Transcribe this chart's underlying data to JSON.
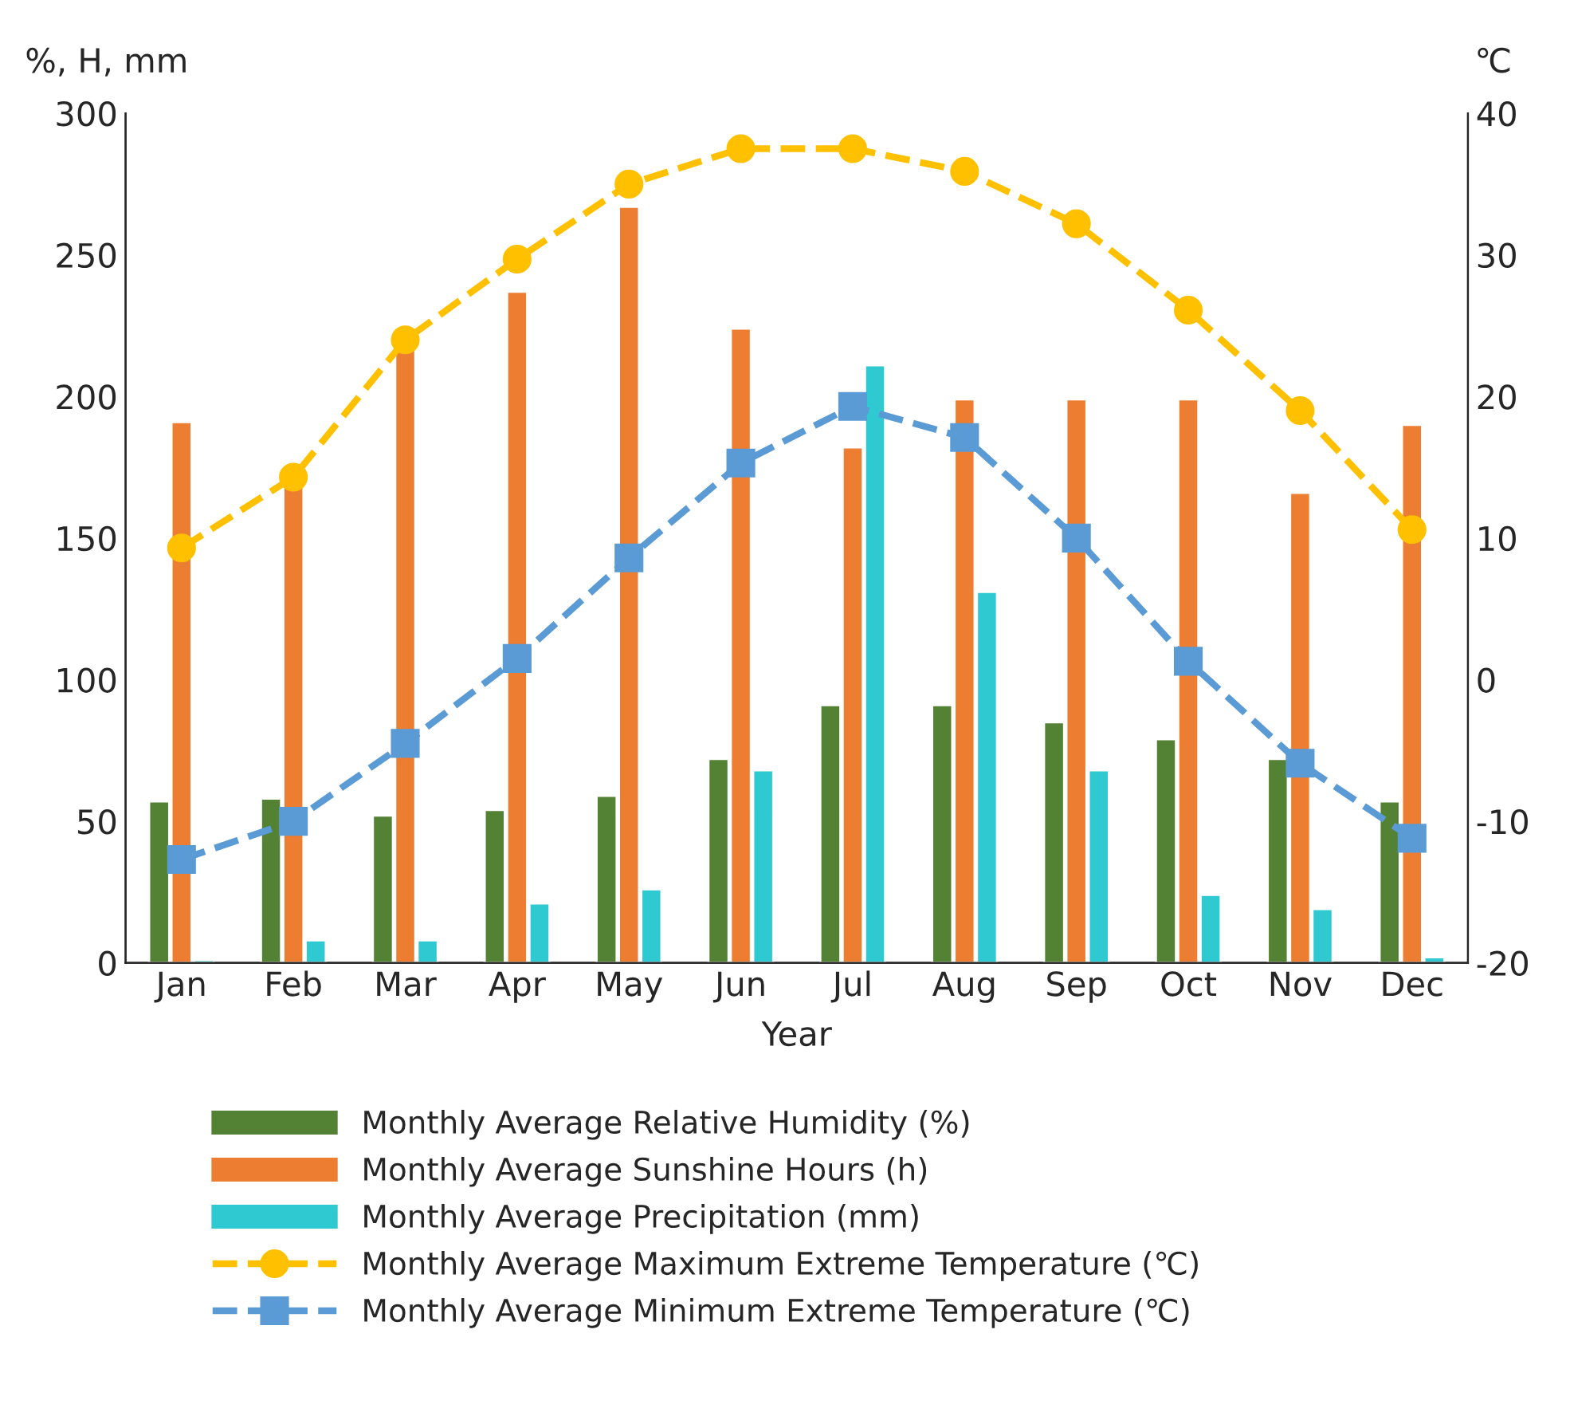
{
  "chart_data": {
    "type": "bar",
    "xlabel": "Year",
    "ylabel": "%, H, mm",
    "y2label": "℃",
    "categories": [
      "Jan",
      "Feb",
      "Mar",
      "Apr",
      "May",
      "Jun",
      "Jul",
      "Aug",
      "Sep",
      "Oct",
      "Nov",
      "Dec"
    ],
    "series": [
      {
        "name": "Monthly Average Relative Humidity (%)",
        "color": "#548235",
        "values": [
          57,
          58,
          52,
          54,
          59,
          72,
          91,
          91,
          85,
          79,
          72,
          57
        ]
      },
      {
        "name": "Monthly Average Sunshine Hours (h)",
        "color": "#ed7d31",
        "values": [
          191,
          170,
          217,
          237,
          267,
          224,
          182,
          199,
          199,
          199,
          166,
          190
        ]
      },
      {
        "name": "Monthly Average Precipitation (mm)",
        "color": "#2ec9d1",
        "values": [
          1,
          8,
          8,
          21,
          26,
          68,
          211,
          131,
          68,
          24,
          19,
          2
        ]
      },
      {
        "name": "Monthly Average Maximum Extreme Temperature (℃)",
        "type": "line",
        "axis": "y2",
        "color": "#ffc000",
        "marker": "circle",
        "line_style": "dashed",
        "values": [
          9.3,
          14.3,
          24,
          29.7,
          35,
          37.5,
          37.5,
          35.9,
          32.2,
          26.1,
          19,
          10.6
        ]
      },
      {
        "name": "Monthly Average Minimum Extreme Temperature (℃)",
        "type": "line",
        "axis": "y2",
        "color": "#5b9bd5",
        "marker": "square",
        "line_style": "dashed",
        "values": [
          -12.7,
          -10,
          -4.5,
          1.5,
          8.6,
          15.3,
          19.3,
          17.1,
          10,
          1.3,
          -5.9,
          -11.2
        ]
      }
    ],
    "ylim": [
      0,
      300
    ],
    "yticks": [
      0,
      50,
      100,
      150,
      200,
      250,
      300
    ],
    "y2lim": [
      -20,
      40
    ],
    "y2ticks": [
      -20,
      -10,
      0,
      10,
      20,
      30,
      40
    ],
    "grid": false,
    "legend": "bottom"
  }
}
